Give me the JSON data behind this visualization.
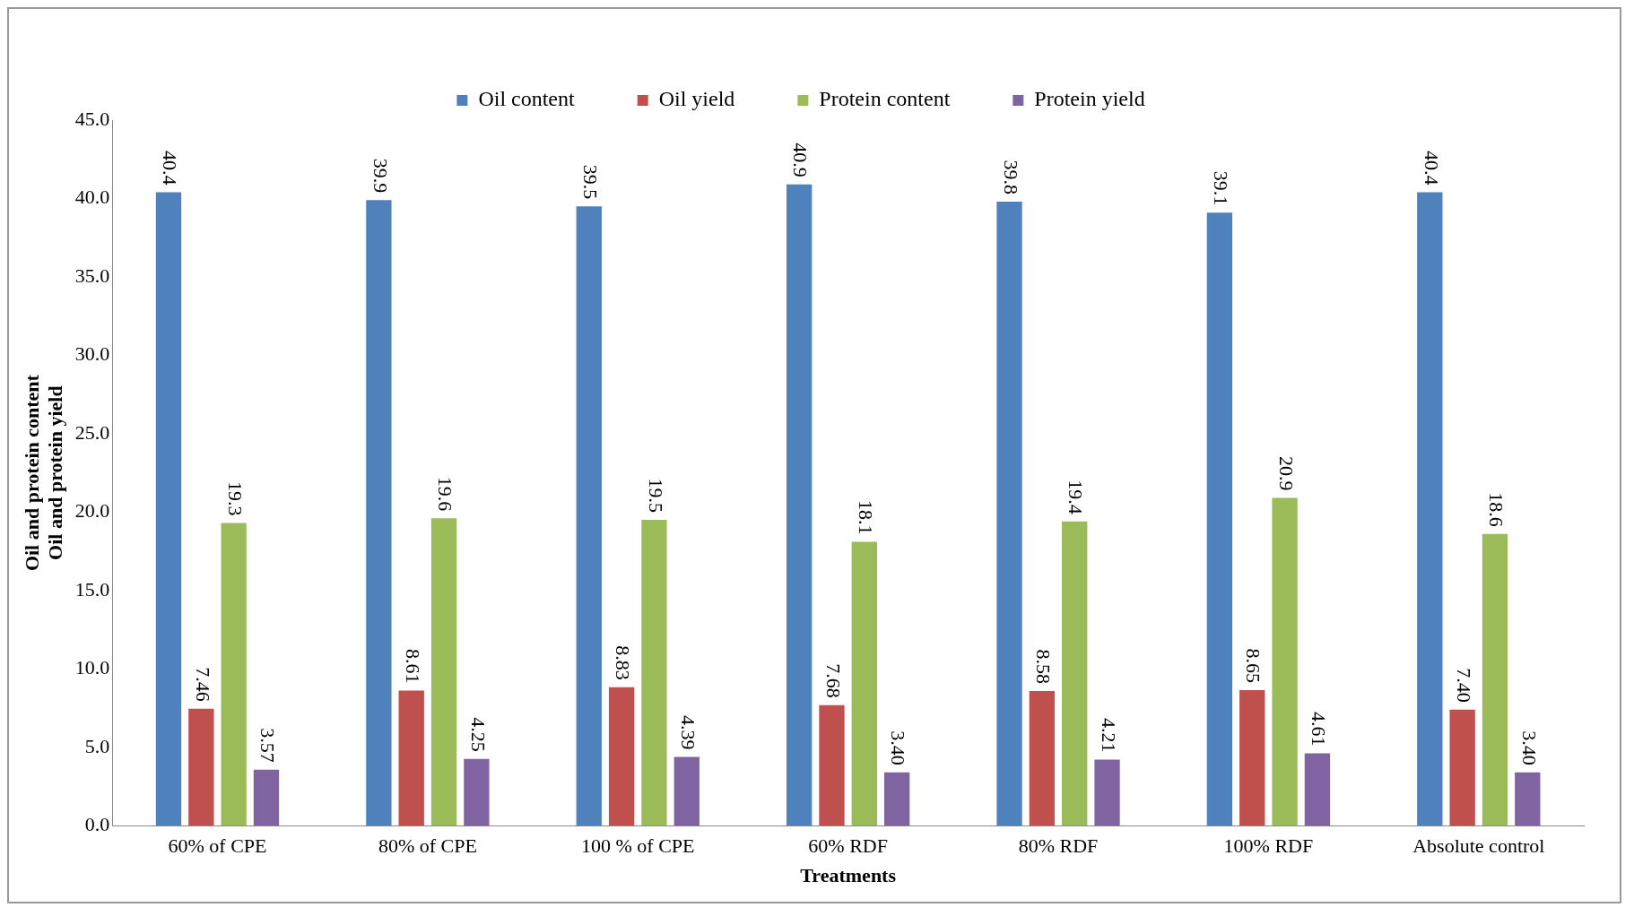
{
  "chart_data": {
    "type": "bar",
    "xlabel": "Treatments",
    "ylabel": "Oil and protein content\nOil and protein yield",
    "categories": [
      "60% of CPE",
      "80% of CPE",
      "100 % of CPE",
      "60% RDF",
      "80% RDF",
      "100% RDF",
      "Absolute control"
    ],
    "series": [
      {
        "name": "Oil content",
        "color": "#4f81bd",
        "values": [
          40.4,
          39.9,
          39.5,
          40.9,
          39.8,
          39.1,
          40.4
        ],
        "value_labels": [
          "40.4",
          "39.9",
          "39.5",
          "40.9",
          "39.8",
          "39.1",
          "40.4"
        ]
      },
      {
        "name": "Oil yield",
        "color": "#c0504d",
        "values": [
          7.46,
          8.61,
          8.83,
          7.68,
          8.58,
          8.65,
          7.4
        ],
        "value_labels": [
          "7.46",
          "8.61",
          "8.83",
          "7.68",
          "8.58",
          "8.65",
          "7.40"
        ]
      },
      {
        "name": "Protein content",
        "color": "#9bbb59",
        "values": [
          19.3,
          19.6,
          19.5,
          18.1,
          19.4,
          20.9,
          18.6
        ],
        "value_labels": [
          "19.3",
          "19.6",
          "19.5",
          "18.1",
          "19.4",
          "20.9",
          "18.6"
        ]
      },
      {
        "name": "Protein yield",
        "color": "#8064a2",
        "values": [
          3.57,
          4.25,
          4.39,
          3.4,
          4.21,
          4.61,
          3.4
        ],
        "value_labels": [
          "3.57",
          "4.25",
          "4.39",
          "3.40",
          "4.21",
          "4.61",
          "3.40"
        ]
      }
    ],
    "ylim": [
      0,
      45
    ],
    "yticks": [
      {
        "value": 0,
        "label": "0.0"
      },
      {
        "value": 5,
        "label": "5.0"
      },
      {
        "value": 10,
        "label": "10.0"
      },
      {
        "value": 15,
        "label": "15.0"
      },
      {
        "value": 20,
        "label": "20.0"
      },
      {
        "value": 25,
        "label": "25.0"
      },
      {
        "value": 30,
        "label": "30.0"
      },
      {
        "value": 35,
        "label": "35.0"
      },
      {
        "value": 40,
        "label": "40.0"
      },
      {
        "value": 45,
        "label": "45.0"
      }
    ],
    "grid": false,
    "legend": "top"
  }
}
